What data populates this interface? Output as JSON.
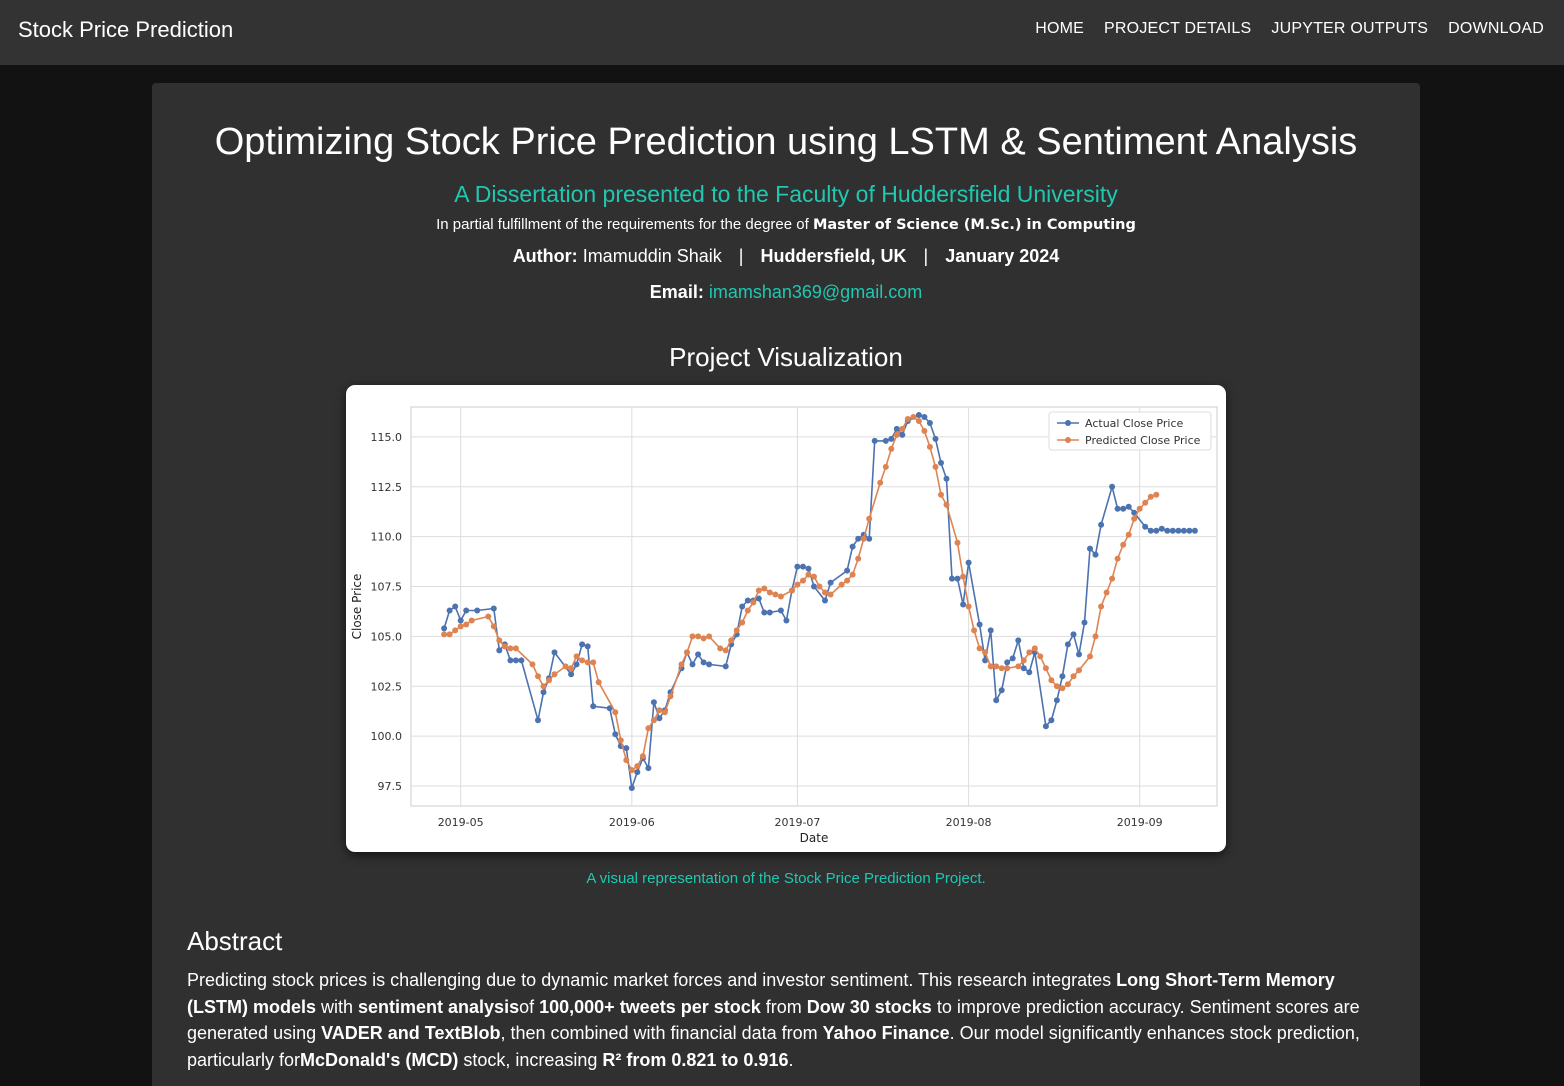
{
  "nav": {
    "brand": "Stock Price Prediction",
    "links": [
      "HOME",
      "PROJECT DETAILS",
      "JUPYTER OUTPUTS",
      "DOWNLOAD"
    ]
  },
  "header": {
    "title": "Optimizing Stock Price Prediction using LSTM & Sentiment Analysis",
    "subtitle": "A Dissertation presented to the Faculty of Huddersfield University",
    "fulfillment_prefix": "In partial fulfillment of the requirements for the degree of",
    "degree": "Master of Science (M.Sc.) in Computing",
    "author_label": "Author:",
    "author_name": "Imamuddin Shaik",
    "separator": "|",
    "location": "Huddersfield, UK",
    "date": "January 2024",
    "email_label": "Email:",
    "email": "imamshan369@gmail.com"
  },
  "visualization": {
    "heading": "Project Visualization",
    "caption": "A visual representation of the Stock Price Prediction Project."
  },
  "abstract": {
    "heading": "Abstract",
    "parts": [
      {
        "t": "Predicting stock prices is challenging due to dynamic market forces and investor sentiment. This research integrates ",
        "b": false
      },
      {
        "t": "Long Short-Term Memory (LSTM) models",
        "b": true
      },
      {
        "t": " with ",
        "b": false
      },
      {
        "t": "sentiment analysis",
        "b": true
      },
      {
        "t": "of ",
        "b": false
      },
      {
        "t": "100,000+ tweets per stock",
        "b": true
      },
      {
        "t": " from ",
        "b": false
      },
      {
        "t": "Dow 30 stocks",
        "b": true
      },
      {
        "t": " to improve prediction accuracy. Sentiment scores are generated using ",
        "b": false
      },
      {
        "t": "VADER and TextBlob",
        "b": true
      },
      {
        "t": ", then combined with financial data from ",
        "b": false
      },
      {
        "t": "Yahoo Finance",
        "b": true
      },
      {
        "t": ". Our model significantly enhances stock prediction, particularly for",
        "b": false
      },
      {
        "t": "McDonald's (MCD)",
        "b": true
      },
      {
        "t": " stock, increasing ",
        "b": false
      },
      {
        "t": "R² from 0.821 to 0.916",
        "b": true
      },
      {
        "t": ".",
        "b": false
      }
    ]
  },
  "chart_data": {
    "type": "line",
    "title": "",
    "xlabel": "Date",
    "ylabel": "Close Price",
    "xlim": [
      -4,
      142
    ],
    "ylim": [
      96.5,
      116.5
    ],
    "x_ticks": [
      {
        "label": "2019-05",
        "x": 5
      },
      {
        "label": "2019-06",
        "x": 36
      },
      {
        "label": "2019-07",
        "x": 66
      },
      {
        "label": "2019-08",
        "x": 97
      },
      {
        "label": "2019-09",
        "x": 128
      }
    ],
    "y_ticks": [
      97.5,
      100.0,
      102.5,
      105.0,
      107.5,
      110.0,
      112.5,
      115.0
    ],
    "grid": true,
    "legend_position": "top-right",
    "colors": {
      "actual": "#4c72b0",
      "predicted": "#dd8452"
    },
    "series": [
      {
        "name": "Actual Close Price",
        "x": [
          2,
          3,
          4,
          5,
          6,
          8,
          11,
          12,
          13,
          14,
          15,
          16,
          19,
          20,
          21,
          22,
          25,
          26,
          27,
          28,
          29,
          32,
          33,
          34,
          35,
          36,
          37,
          38,
          39,
          40,
          41,
          42,
          43,
          45,
          46,
          47,
          48,
          49,
          50,
          53,
          54,
          55,
          56,
          57,
          58,
          59,
          60,
          61,
          63,
          64,
          65,
          66,
          67,
          68,
          69,
          71,
          72,
          75,
          76,
          77,
          78,
          79,
          80,
          82,
          83,
          84,
          85,
          86,
          88,
          89,
          90,
          91,
          92,
          93,
          94,
          95,
          96,
          97,
          99,
          100,
          101,
          102,
          103,
          104,
          105,
          106,
          107,
          108,
          109,
          111,
          112,
          113,
          114,
          115,
          116,
          117,
          118,
          119,
          120,
          121,
          123,
          124,
          125,
          126,
          127,
          129,
          130,
          131,
          132,
          133,
          134,
          135,
          136,
          137,
          138
        ],
        "y": [
          105.4,
          106.3,
          106.5,
          105.8,
          106.3,
          106.3,
          106.4,
          104.3,
          104.6,
          103.8,
          103.8,
          103.8,
          100.8,
          102.2,
          102.9,
          104.2,
          103.1,
          103.6,
          104.6,
          104.5,
          101.5,
          101.4,
          100.1,
          99.5,
          99.4,
          97.4,
          98.2,
          98.9,
          98.4,
          101.7,
          100.9,
          101.3,
          102.2,
          103.4,
          104.2,
          103.6,
          104.1,
          103.7,
          103.6,
          103.5,
          104.6,
          105.1,
          106.5,
          106.8,
          106.8,
          106.9,
          106.2,
          106.2,
          106.3,
          105.8,
          107.3,
          108.5,
          108.5,
          108.4,
          107.5,
          106.8,
          107.7,
          108.3,
          109.5,
          109.9,
          110.1,
          109.9,
          114.8,
          114.8,
          114.9,
          115.4,
          115.1,
          115.8,
          116.1,
          116.0,
          115.7,
          114.9,
          113.7,
          112.9,
          107.9,
          107.9,
          106.6,
          108.7,
          105.6,
          103.8,
          105.3,
          101.8,
          102.3,
          103.7,
          103.9,
          104.8,
          103.4,
          103.2,
          104.2,
          100.5,
          100.8,
          101.8,
          103.0,
          104.6,
          105.1,
          104.1,
          105.7,
          109.4,
          109.1,
          110.6,
          112.5,
          111.4,
          111.4,
          111.5,
          111.2,
          110.5,
          110.3,
          110.3,
          110.4,
          110.3,
          110.3,
          110.3,
          110.3,
          110.3,
          110.3
        ]
      },
      {
        "name": "Predicted Close Price",
        "x": [
          2,
          3,
          4,
          5,
          6,
          7,
          10,
          11,
          12,
          13,
          14,
          15,
          18,
          19,
          20,
          21,
          22,
          24,
          25,
          26,
          27,
          28,
          29,
          30,
          33,
          34,
          35,
          36,
          37,
          38,
          39,
          40,
          41,
          42,
          43,
          45,
          46,
          47,
          48,
          49,
          50,
          52,
          53,
          54,
          55,
          56,
          57,
          58,
          59,
          60,
          61,
          62,
          63,
          65,
          66,
          67,
          68,
          69,
          70,
          71,
          72,
          74,
          75,
          76,
          77,
          78,
          79,
          81,
          82,
          83,
          84,
          85,
          86,
          87,
          88,
          89,
          90,
          91,
          92,
          93,
          95,
          96,
          97,
          98,
          99,
          100,
          101,
          102,
          103,
          104,
          106,
          107,
          108,
          109,
          110,
          111,
          112,
          113,
          114,
          115,
          116,
          117,
          119,
          120,
          121,
          122,
          123,
          124,
          125,
          126,
          127,
          128,
          129,
          130,
          131
        ],
        "y": [
          105.1,
          105.1,
          105.3,
          105.5,
          105.6,
          105.8,
          106.0,
          105.5,
          104.8,
          104.5,
          104.4,
          104.4,
          103.6,
          103.0,
          102.5,
          102.8,
          103.1,
          103.5,
          103.4,
          104.0,
          103.8,
          103.7,
          103.7,
          102.7,
          101.2,
          99.8,
          98.8,
          98.3,
          98.5,
          99.0,
          100.4,
          100.8,
          101.3,
          101.2,
          102.0,
          103.6,
          104.2,
          105.0,
          105.0,
          104.9,
          105.0,
          104.4,
          104.3,
          104.8,
          105.3,
          105.7,
          106.3,
          106.7,
          107.3,
          107.4,
          107.2,
          107.1,
          107.0,
          107.3,
          107.6,
          107.8,
          108.1,
          108.0,
          107.5,
          107.2,
          107.1,
          107.6,
          107.8,
          108.1,
          108.9,
          109.9,
          110.9,
          112.7,
          113.5,
          114.4,
          115.1,
          115.4,
          115.9,
          116.0,
          115.8,
          115.3,
          114.5,
          113.5,
          112.1,
          111.6,
          109.7,
          108.0,
          106.5,
          105.3,
          104.4,
          104.2,
          103.5,
          103.5,
          103.4,
          103.4,
          103.5,
          103.8,
          104.2,
          104.4,
          104.0,
          103.4,
          102.8,
          102.5,
          102.4,
          102.6,
          103.0,
          103.3,
          104.0,
          105.0,
          106.5,
          107.2,
          107.9,
          108.9,
          109.6,
          110.1,
          110.9,
          111.4,
          111.7,
          112.0,
          112.1
        ]
      }
    ]
  }
}
